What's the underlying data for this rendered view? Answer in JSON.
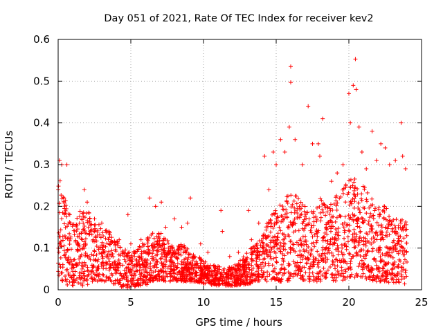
{
  "chart_data": {
    "type": "scatter",
    "title": "Day 051 of 2021, Rate Of TEC Index for receiver kev2",
    "xlabel": "GPS time / hours",
    "ylabel": "ROTI / TECUs",
    "xlim": [
      0,
      25
    ],
    "ylim": [
      0,
      0.6
    ],
    "x_ticks": [
      0,
      5,
      10,
      15,
      20,
      25
    ],
    "x_tick_labels": [
      "0",
      "5",
      "10",
      "15",
      "20",
      "25"
    ],
    "y_ticks": [
      0,
      0.1,
      0.2,
      0.3,
      0.4,
      0.5,
      0.6
    ],
    "y_tick_labels": [
      "0",
      "0.1",
      "0.2",
      "0.3",
      "0.4",
      "0.5",
      "0.6"
    ],
    "grid": true,
    "marker": "+",
    "color": "#ff0000",
    "series": [
      {
        "name": "ROTI",
        "points": [
          [
            0.1,
            0.31
          ],
          [
            0.25,
            0.3
          ],
          [
            0.4,
            0.22
          ],
          [
            0.6,
            0.3
          ],
          [
            0.8,
            0.18
          ],
          [
            1.8,
            0.24
          ],
          [
            2.0,
            0.21
          ],
          [
            2.5,
            0.17
          ],
          [
            3.0,
            0.16
          ],
          [
            3.5,
            0.14
          ],
          [
            4.2,
            0.12
          ],
          [
            4.8,
            0.18
          ],
          [
            5.0,
            0.11
          ],
          [
            5.7,
            0.12
          ],
          [
            6.3,
            0.22
          ],
          [
            6.7,
            0.2
          ],
          [
            7.1,
            0.21
          ],
          [
            7.4,
            0.15
          ],
          [
            8.0,
            0.17
          ],
          [
            8.5,
            0.15
          ],
          [
            8.9,
            0.16
          ],
          [
            9.1,
            0.22
          ],
          [
            9.8,
            0.11
          ],
          [
            10.3,
            0.09
          ],
          [
            11.2,
            0.19
          ],
          [
            11.3,
            0.14
          ],
          [
            11.8,
            0.08
          ],
          [
            12.4,
            0.09
          ],
          [
            13.1,
            0.19
          ],
          [
            13.3,
            0.12
          ],
          [
            13.8,
            0.16
          ],
          [
            14.2,
            0.32
          ],
          [
            14.5,
            0.24
          ],
          [
            14.8,
            0.33
          ],
          [
            15.0,
            0.3
          ],
          [
            15.3,
            0.36
          ],
          [
            15.6,
            0.33
          ],
          [
            15.9,
            0.39
          ],
          [
            16.0,
            0.535
          ],
          [
            16.0,
            0.497
          ],
          [
            16.3,
            0.36
          ],
          [
            16.8,
            0.3
          ],
          [
            17.2,
            0.44
          ],
          [
            17.5,
            0.35
          ],
          [
            17.9,
            0.35
          ],
          [
            18.0,
            0.32
          ],
          [
            18.2,
            0.41
          ],
          [
            18.8,
            0.26
          ],
          [
            19.2,
            0.28
          ],
          [
            19.6,
            0.3
          ],
          [
            20.0,
            0.47
          ],
          [
            20.1,
            0.4
          ],
          [
            20.3,
            0.49
          ],
          [
            20.45,
            0.553
          ],
          [
            20.5,
            0.48
          ],
          [
            20.7,
            0.39
          ],
          [
            20.9,
            0.33
          ],
          [
            21.2,
            0.29
          ],
          [
            21.6,
            0.38
          ],
          [
            21.9,
            0.31
          ],
          [
            22.2,
            0.35
          ],
          [
            22.5,
            0.34
          ],
          [
            22.8,
            0.3
          ],
          [
            23.2,
            0.31
          ],
          [
            23.6,
            0.4
          ],
          [
            23.7,
            0.32
          ],
          [
            23.9,
            0.29
          ]
        ],
        "envelope": [
          [
            0.0,
            0.02,
            0.28
          ],
          [
            0.3,
            0.02,
            0.25
          ],
          [
            0.6,
            0.01,
            0.21
          ],
          [
            1.0,
            0.01,
            0.16
          ],
          [
            1.5,
            0.01,
            0.19
          ],
          [
            2.0,
            0.01,
            0.19
          ],
          [
            2.5,
            0.02,
            0.17
          ],
          [
            3.0,
            0.02,
            0.15
          ],
          [
            3.5,
            0.02,
            0.14
          ],
          [
            4.0,
            0.01,
            0.12
          ],
          [
            4.5,
            0.005,
            0.1
          ],
          [
            5.0,
            0.005,
            0.09
          ],
          [
            5.5,
            0.01,
            0.1
          ],
          [
            6.0,
            0.01,
            0.12
          ],
          [
            6.5,
            0.02,
            0.14
          ],
          [
            7.0,
            0.02,
            0.14
          ],
          [
            7.5,
            0.02,
            0.12
          ],
          [
            8.0,
            0.02,
            0.1
          ],
          [
            8.5,
            0.02,
            0.11
          ],
          [
            9.0,
            0.02,
            0.1
          ],
          [
            9.5,
            0.02,
            0.09
          ],
          [
            10.0,
            0.015,
            0.07
          ],
          [
            10.5,
            0.01,
            0.06
          ],
          [
            11.0,
            0.01,
            0.06
          ],
          [
            11.5,
            0.01,
            0.05
          ],
          [
            12.0,
            0.01,
            0.06
          ],
          [
            12.5,
            0.01,
            0.07
          ],
          [
            13.0,
            0.01,
            0.09
          ],
          [
            13.5,
            0.02,
            0.11
          ],
          [
            14.0,
            0.02,
            0.13
          ],
          [
            14.5,
            0.02,
            0.17
          ],
          [
            15.0,
            0.02,
            0.2
          ],
          [
            15.5,
            0.02,
            0.22
          ],
          [
            16.0,
            0.02,
            0.24
          ],
          [
            16.5,
            0.03,
            0.22
          ],
          [
            17.0,
            0.02,
            0.2
          ],
          [
            17.5,
            0.02,
            0.2
          ],
          [
            18.0,
            0.02,
            0.22
          ],
          [
            18.5,
            0.03,
            0.2
          ],
          [
            19.0,
            0.02,
            0.22
          ],
          [
            19.5,
            0.02,
            0.24
          ],
          [
            20.0,
            0.03,
            0.27
          ],
          [
            20.5,
            0.03,
            0.27
          ],
          [
            21.0,
            0.03,
            0.26
          ],
          [
            21.5,
            0.02,
            0.22
          ],
          [
            22.0,
            0.02,
            0.21
          ],
          [
            22.5,
            0.02,
            0.2
          ],
          [
            23.0,
            0.01,
            0.18
          ],
          [
            23.5,
            0.01,
            0.17
          ],
          [
            24.0,
            0.01,
            0.17
          ]
        ]
      }
    ]
  }
}
